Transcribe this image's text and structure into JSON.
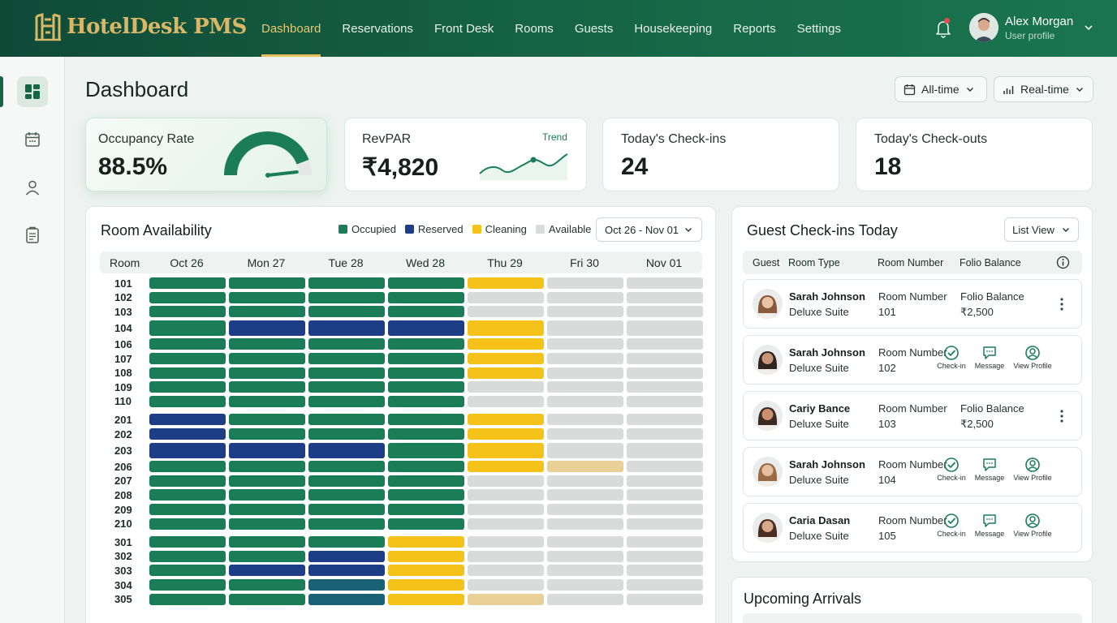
{
  "app": {
    "name": "HotelDesk PMS"
  },
  "nav": [
    {
      "label": "Dashboard",
      "active": true
    },
    {
      "label": "Reservations"
    },
    {
      "label": "Front Desk"
    },
    {
      "label": "Rooms"
    },
    {
      "label": "Guests"
    },
    {
      "label": "Housekeeping"
    },
    {
      "label": "Reports"
    },
    {
      "label": "Settings"
    }
  ],
  "user": {
    "name": "Alex Morgan",
    "subtitle": "User profile"
  },
  "sidebar": [
    "dashboard-icon",
    "calendar-icon",
    "user-icon",
    "report-icon"
  ],
  "page": {
    "title": "Dashboard"
  },
  "filters": {
    "period": "All-time",
    "mode": "Real-time"
  },
  "kpis": {
    "occupancy": {
      "label": "Occupancy Rate",
      "value": "88.5%",
      "gauge_fraction": 0.885
    },
    "revpar": {
      "label": "RevPAR",
      "value": "₹4,820",
      "trend_label": "Trend"
    },
    "checkins": {
      "label": "Today's Check-ins",
      "value": "24"
    },
    "checkouts": {
      "label": "Today's Check-outs",
      "value": "18"
    }
  },
  "availability": {
    "title": "Room Availability",
    "date_range": "Oct 26 - Nov 01",
    "legend": [
      {
        "label": "Occupied",
        "color": "#1b7d58"
      },
      {
        "label": "Reserved",
        "color": "#1d3d86"
      },
      {
        "label": "Cleaning",
        "color": "#f5c21a"
      },
      {
        "label": "Available",
        "color": "#d8dbd9"
      }
    ],
    "colors": {
      "O": "#1b7d58",
      "R": "#1d3d86",
      "C": "#f5c21a",
      "A": "#d8dbd9",
      "T": "#1b6176",
      "P": "#e8d096"
    },
    "room_header": "Room",
    "days": [
      "Oct 26",
      "Mon 27",
      "Tue 28",
      "Wed 28",
      "Thu 29",
      "Fri 30",
      "Nov 01"
    ],
    "rooms": [
      {
        "room": "101",
        "s": "OOOOCAA"
      },
      {
        "room": "102",
        "s": "OOOOAAA"
      },
      {
        "room": "103",
        "s": "OOOOAAA"
      },
      {
        "room": "104",
        "s": "ORRRCAA"
      },
      {
        "room": "106",
        "s": "OOOOCAA"
      },
      {
        "room": "107",
        "s": "OOOOCAA"
      },
      {
        "room": "108",
        "s": "OOOOCAA"
      },
      {
        "room": "109",
        "s": "OOOOAAA"
      },
      {
        "room": "110",
        "s": "OOOOAAA"
      },
      {
        "room": "201",
        "s": "ROOOCAA"
      },
      {
        "room": "202",
        "s": "ROOOCAA"
      },
      {
        "room": "203",
        "s": "RRROCAA"
      },
      {
        "room": "206",
        "s": "OOOOCPA"
      },
      {
        "room": "207",
        "s": "OOOOAAA"
      },
      {
        "room": "208",
        "s": "OOOOAAA"
      },
      {
        "room": "209",
        "s": "OOOOAAA"
      },
      {
        "room": "210",
        "s": "OOOOAAA"
      },
      {
        "room": "301",
        "s": "OOOCAAA"
      },
      {
        "room": "302",
        "s": "OORCAAA"
      },
      {
        "room": "303",
        "s": "ORRCAAA"
      },
      {
        "room": "304",
        "s": "OOTCAAA"
      },
      {
        "room": "305",
        "s": "OOTCPAA"
      }
    ]
  },
  "checkins": {
    "title": "Guest Check-ins Today",
    "view": "List View",
    "columns": [
      "Guest",
      "Room Type",
      "Room Number",
      "Folio Balance"
    ],
    "room_number_label": "Room Number",
    "folio_label": "Folio Balance",
    "actions": [
      "Check-in",
      "Message",
      "View Profile"
    ],
    "rows": [
      {
        "name": "Sarah Johnson",
        "type": "Deluxe Suite",
        "room": "101",
        "folio": "₹2,500",
        "mode": "menu",
        "skin": "#e8c3a8",
        "hair": "#8a5a3c"
      },
      {
        "name": "Sarah Johnson",
        "type": "Deluxe Suite",
        "room": "102",
        "mode": "actions",
        "skin": "#c99577",
        "hair": "#2f2420"
      },
      {
        "name": "Cariy Bance",
        "type": "Deluxe Suite",
        "room": "103",
        "folio": "₹2,500",
        "mode": "menu",
        "skin": "#c98f6e",
        "hair": "#3b2a22"
      },
      {
        "name": "Sarah Johnson",
        "type": "Deluxe Suite",
        "room": "104",
        "mode": "actions",
        "skin": "#e6bfa2",
        "hair": "#9a6a45"
      },
      {
        "name": "Caria Dasan",
        "type": "Deluxe Suite",
        "room": "105",
        "mode": "actions",
        "skin": "#d9a888",
        "hair": "#4a2e22"
      }
    ]
  },
  "arrivals": {
    "title": "Upcoming Arrivals"
  }
}
